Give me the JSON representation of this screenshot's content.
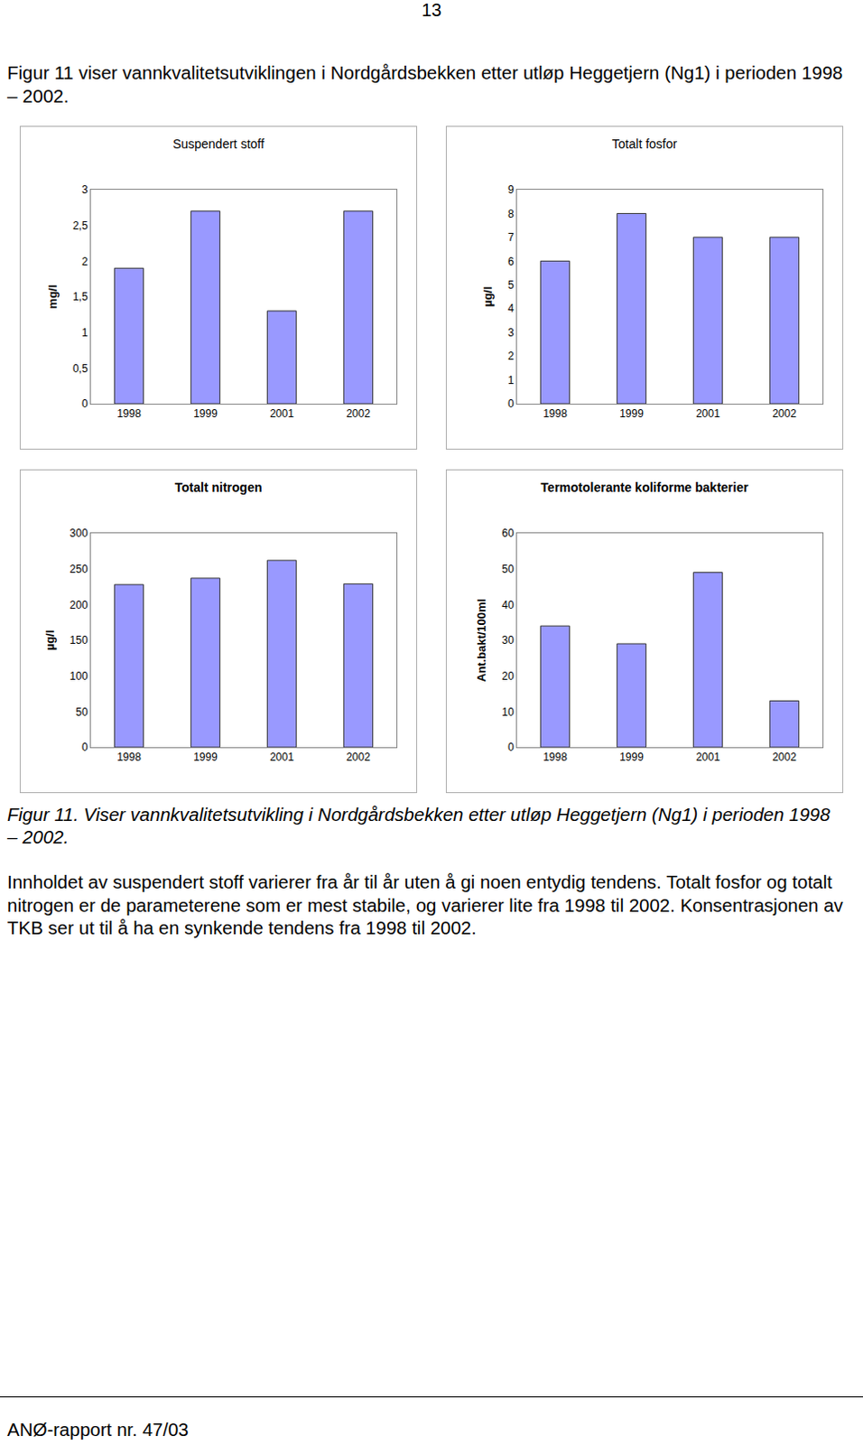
{
  "page_number": "13",
  "intro": "Figur 11 viser vannkvalitetsutviklingen i Nordgårdsbekken etter utløp Heggetjern (Ng1) i perioden 1998 – 2002.",
  "chart_data": [
    {
      "type": "bar",
      "title": "Suspendert stoff",
      "y_label": "mg/l",
      "categories": [
        "1998",
        "1999",
        "2001",
        "2002"
      ],
      "values": [
        1.9,
        2.7,
        1.3,
        2.7
      ],
      "color": "#9999ff",
      "ylim": [
        0,
        3
      ],
      "yticks": [
        0,
        {
          "value": 0.5,
          "label": "0,5"
        },
        1,
        {
          "value": 1.5,
          "label": "1,5"
        },
        2,
        {
          "value": 2.5,
          "label": "2,5"
        },
        3
      ],
      "grid": false
    },
    {
      "type": "bar",
      "title": "Totalt fosfor",
      "y_label": "µg/l",
      "categories": [
        "1998",
        "1999",
        "2001",
        "2002"
      ],
      "values": [
        6,
        8,
        7,
        7
      ],
      "color": "#9999ff",
      "ylim": [
        0,
        9
      ],
      "yticks": [
        0,
        1,
        2,
        3,
        4,
        5,
        6,
        7,
        8,
        9
      ],
      "grid": false
    },
    {
      "type": "bar",
      "title": "Totalt nitrogen",
      "y_label": "µg/l",
      "categories": [
        "1998",
        "1999",
        "2001",
        "2002"
      ],
      "values": [
        228,
        237,
        262,
        229
      ],
      "color": "#9999ff",
      "ylim": [
        0,
        300
      ],
      "yticks": [
        0,
        50,
        100,
        150,
        200,
        250,
        300
      ],
      "grid": false
    },
    {
      "type": "bar",
      "title": "Termotolerante koliforme bakterier",
      "y_label": "Ant.bakt/100ml",
      "categories": [
        "1998",
        "1999",
        "2001",
        "2002"
      ],
      "values": [
        34,
        29,
        49,
        13
      ],
      "color": "#9999ff",
      "ylim": [
        0,
        60
      ],
      "yticks": [
        0,
        10,
        20,
        30,
        40,
        50,
        60
      ],
      "grid": false
    }
  ],
  "caption": "Figur 11. Viser vannkvalitetsutvikling i Nordgårdsbekken etter utløp Heggetjern (Ng1) i perioden 1998 – 2002.",
  "body": "Innholdet av suspendert stoff varierer fra år til år uten å gi noen entydig tendens. Totalt fosfor og totalt nitrogen er de parameterene som er mest stabile, og varierer lite fra 1998 til 2002. Konsentrasjonen av TKB ser ut til å ha en synkende tendens fra 1998 til 2002.",
  "footer": "ANØ-rapport nr. 47/03"
}
